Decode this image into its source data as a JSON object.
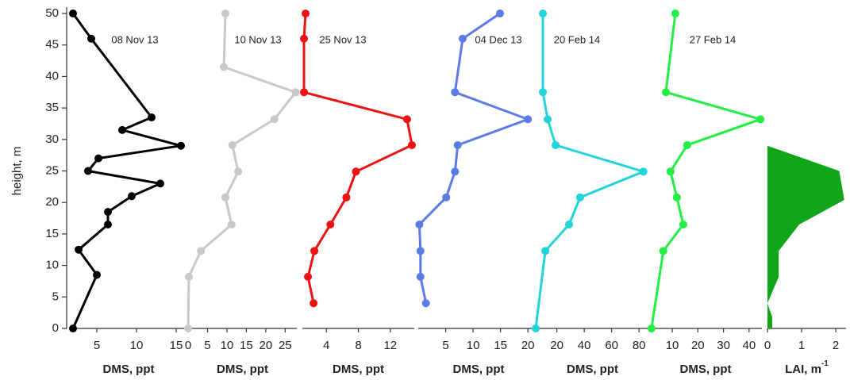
{
  "chart_data": [
    {
      "type": "line",
      "title": "08 Nov 13",
      "x_label": "DMS, ppt",
      "y_label": "height, m",
      "color": "#000000",
      "ylim": [
        0,
        51
      ],
      "yticks": [
        0,
        5,
        10,
        15,
        20,
        25,
        30,
        35,
        40,
        45,
        50
      ],
      "xlim": [
        2,
        16
      ],
      "xticks": [
        5,
        10,
        15
      ],
      "values": [
        2,
        4.3,
        11.9,
        8.2,
        15.6,
        5.2,
        3.9,
        13.0,
        9.4,
        6.4,
        6.4,
        2.7,
        5.0,
        2
      ],
      "y": [
        50,
        46,
        33.5,
        31.5,
        29,
        27,
        25,
        23,
        21,
        18.5,
        16.5,
        12.5,
        8.5,
        0
      ]
    },
    {
      "type": "line",
      "title": "10 Nov 13",
      "x_label": "DMS, ppt",
      "color": "#c8c8c8",
      "xlim": [
        0,
        28
      ],
      "xticks": [
        0,
        5,
        10,
        15,
        20,
        25
      ],
      "values": [
        9.6,
        9.2,
        27.7,
        22.2,
        11.4,
        12.9,
        9.6,
        11.2,
        3.3,
        0.2,
        0
      ],
      "y": [
        50,
        41.5,
        37.5,
        33.2,
        29.1,
        24.9,
        20.8,
        16.5,
        12.3,
        8.2,
        0
      ]
    },
    {
      "type": "line",
      "title": "25 Nov 13",
      "x_label": "DMS, ppt",
      "color": "#ee1111",
      "xlim": [
        1,
        15
      ],
      "xticks": [
        4,
        8,
        12
      ],
      "values": [
        1.4,
        1.2,
        1.2,
        14.1,
        14.7,
        7.7,
        6.5,
        4.5,
        2.5,
        1.7,
        2.4
      ],
      "y": [
        50,
        46,
        37.5,
        33.2,
        29.1,
        24.9,
        20.8,
        16.5,
        12.3,
        8.2,
        4
      ]
    },
    {
      "type": "line",
      "title": "04 Dec 13",
      "x_label": "DMS, ppt",
      "color": "#5b7be8",
      "xlim": [
        0,
        22
      ],
      "xticks": [
        5,
        10,
        15,
        20
      ],
      "values": [
        14.9,
        8.1,
        6.7,
        20,
        7.2,
        6.7,
        5.1,
        0.2,
        0.4,
        0.4,
        1.4
      ],
      "y": [
        50,
        46,
        37.5,
        33.2,
        29.1,
        24.9,
        20.8,
        16.5,
        12.3,
        8.2,
        4
      ]
    },
    {
      "type": "line",
      "title": "20 Feb 14",
      "x_label": "DMS, ppt",
      "color": "#22d3d8",
      "xlim": [
        4,
        88
      ],
      "xticks": [
        20,
        40,
        60,
        80
      ],
      "values": [
        9.8,
        9.8,
        13.3,
        19.1,
        83.2,
        37,
        28.9,
        11.6,
        4.6
      ],
      "y": [
        50,
        37.5,
        33.2,
        29.1,
        24.9,
        20.8,
        16.5,
        12.3,
        0
      ]
    },
    {
      "type": "line",
      "title": "27 Feb 14",
      "x_label": "DMS, ppt",
      "color": "#22ee44",
      "xlim": [
        1,
        45
      ],
      "xticks": [
        10,
        20,
        30,
        40
      ],
      "values": [
        11.2,
        7.5,
        44.4,
        15.8,
        9.3,
        11.8,
        14.3,
        6.5,
        1.9
      ],
      "y": [
        50,
        37.5,
        33.2,
        29.1,
        24.9,
        20.8,
        16.5,
        12.3,
        0
      ]
    },
    {
      "type": "area",
      "x_label": "LAI, m",
      "x_label_sup": "-1",
      "color": "#11a51a",
      "xlim": [
        0,
        2.3
      ],
      "xticks": [
        0,
        1,
        2
      ],
      "values": [
        0,
        2.1,
        2.25,
        0.93,
        0.33,
        0.33,
        0,
        0.14,
        0.14
      ],
      "y": [
        29,
        25,
        20.4,
        16.5,
        12.3,
        8.2,
        4,
        1.8,
        0
      ]
    }
  ]
}
